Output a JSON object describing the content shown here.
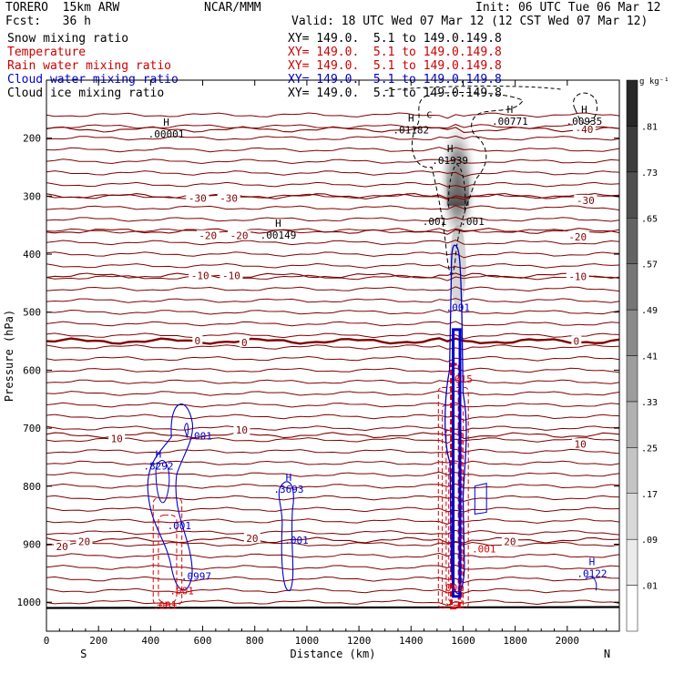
{
  "header": {
    "model": "TORERO  15km ARW",
    "center": "NCAR/MMM",
    "init": "Init: 06 UTC Tue 06 Mar 12",
    "fcst": "Fcst:   36 h",
    "valid": "Valid: 18 UTC Wed 07 Mar 12 (12 CST Wed 07 Mar 12)"
  },
  "fields": [
    {
      "name": "Snow mixing ratio",
      "xy": "",
      "color": "#000000"
    },
    {
      "name": "Temperature",
      "xy": "XY= 149.0.  5.1 to 149.0.149.8",
      "color": "#cc0000"
    },
    {
      "name": "Rain water mixing ratio",
      "xy": "XY= 149.0.  5.1 to 149.0.149.8",
      "color": "#cc0000"
    },
    {
      "name": "Cloud water mixing ratio",
      "xy": "XY= 149.0.  5.1 to 149.0.149.8",
      "color": "#0000cc"
    },
    {
      "name": "Cloud ice mixing ratio",
      "xy": "XY= 149.0.  5.1 to 149.0.149.8",
      "color": "#000000"
    }
  ],
  "snow_xy": "XY= 149.0.  5.1 to 149.0.149.8",
  "colors": {
    "temperature": "#800000",
    "rain": "#dd0000",
    "cloud_water": "#0000cc",
    "cloud_ice": "#000000"
  },
  "chart_data": {
    "type": "cross-section",
    "xlabel": "Distance (km)",
    "ylabel": "Pressure (hPa)",
    "xlim": [
      0,
      2200
    ],
    "ylim": [
      1050,
      100
    ],
    "x_ticks": [
      0,
      200,
      400,
      600,
      800,
      1000,
      1200,
      1400,
      1600,
      1800,
      2000
    ],
    "y_ticks": [
      200,
      300,
      400,
      500,
      600,
      700,
      800,
      900,
      1000
    ],
    "side_labels": {
      "left": "S",
      "right": "N"
    },
    "colorbar": {
      "unit": "g kg⁻¹",
      "levels": [
        ".01",
        ".09",
        ".17",
        ".25",
        ".33",
        ".41",
        ".49",
        ".57",
        ".65",
        ".73",
        ".81"
      ]
    },
    "temperature_isotherms": [
      {
        "value": -40,
        "pressure": 185
      },
      {
        "value": -30,
        "pressure": 300
      },
      {
        "value": -20,
        "pressure": 360
      },
      {
        "value": -10,
        "pressure": 437
      },
      {
        "value": 0,
        "pressure": 550
      },
      {
        "value": 10,
        "pressure": 712
      },
      {
        "value": 20,
        "pressure": 893
      }
    ],
    "temperature_labels": [
      {
        "text": "-40",
        "x": 2065,
        "p": 185
      },
      {
        "text": "-30",
        "x": 580,
        "p": 303
      },
      {
        "text": "-30",
        "x": 700,
        "p": 303
      },
      {
        "text": "-30",
        "x": 2070,
        "p": 307
      },
      {
        "text": "-20",
        "x": 620,
        "p": 368
      },
      {
        "text": "-20",
        "x": 740,
        "p": 368
      },
      {
        "text": "-20",
        "x": 2040,
        "p": 370
      },
      {
        "text": "-10",
        "x": 590,
        "p": 437
      },
      {
        "text": "-10",
        "x": 710,
        "p": 437
      },
      {
        "text": "-10",
        "x": 2040,
        "p": 438
      },
      {
        "text": "0",
        "x": 580,
        "p": 549
      },
      {
        "text": "0",
        "x": 760,
        "p": 552
      },
      {
        "text": "0",
        "x": 2035,
        "p": 550
      },
      {
        "text": "10",
        "x": 270,
        "p": 718
      },
      {
        "text": "10",
        "x": 750,
        "p": 703
      },
      {
        "text": "10",
        "x": 2050,
        "p": 727
      },
      {
        "text": "20",
        "x": 60,
        "p": 904
      },
      {
        "text": "20",
        "x": 145,
        "p": 895
      },
      {
        "text": "20",
        "x": 790,
        "p": 890
      },
      {
        "text": "20",
        "x": 1780,
        "p": 895
      }
    ],
    "highs": [
      {
        "label": ".00001",
        "x": 460,
        "p": 197,
        "color": "#000000"
      },
      {
        "label": ".00149",
        "x": 890,
        "p": 372,
        "color": "#000000"
      },
      {
        "label": ".01182",
        "x": 1400,
        "p": 190,
        "color": "#000000"
      },
      {
        "label": ".00771",
        "x": 1780,
        "p": 175,
        "color": "#000000"
      },
      {
        "label": ".00935",
        "x": 2065,
        "p": 175,
        "color": "#000000"
      },
      {
        "label": ".01939",
        "x": 1550,
        "p": 243,
        "color": "#000000"
      },
      {
        "label": ".8292",
        "x": 430,
        "p": 770,
        "color": "#0000cc"
      },
      {
        "label": ".3693",
        "x": 930,
        "p": 810,
        "color": "#0000cc"
      },
      {
        "label": ".0122",
        "x": 2095,
        "p": 955,
        "color": "#0000cc"
      }
    ],
    "contour_labels": [
      {
        "text": ".001",
        "x": 1490,
        "p": 343,
        "color": "#000000"
      },
      {
        "text": ".001",
        "x": 1635,
        "p": 343,
        "color": "#000000"
      },
      {
        "text": ".001",
        "x": 1580,
        "p": 492,
        "color": "#0000cc"
      },
      {
        "text": ".001",
        "x": 590,
        "p": 713,
        "color": "#0000cc"
      },
      {
        "text": ".001",
        "x": 510,
        "p": 868,
        "color": "#0000cc"
      },
      {
        "text": ".001",
        "x": 960,
        "p": 893,
        "color": "#0000cc"
      },
      {
        "text": ".0997",
        "x": 575,
        "p": 955,
        "color": "#0000cc"
      },
      {
        "text": ".001",
        "x": 520,
        "p": 980,
        "color": "#dd0000"
      },
      {
        "text": ".001",
        "x": 455,
        "p": 1005,
        "color": "#dd0000"
      },
      {
        "text": ".001",
        "x": 1680,
        "p": 908,
        "color": "#dd0000"
      },
      {
        "text": ".001",
        "x": 1555,
        "p": 975,
        "color": "#dd0000"
      },
      {
        "text": ".015",
        "x": 1590,
        "p": 615,
        "color": "#dd0000"
      }
    ],
    "extra_text": "C"
  }
}
